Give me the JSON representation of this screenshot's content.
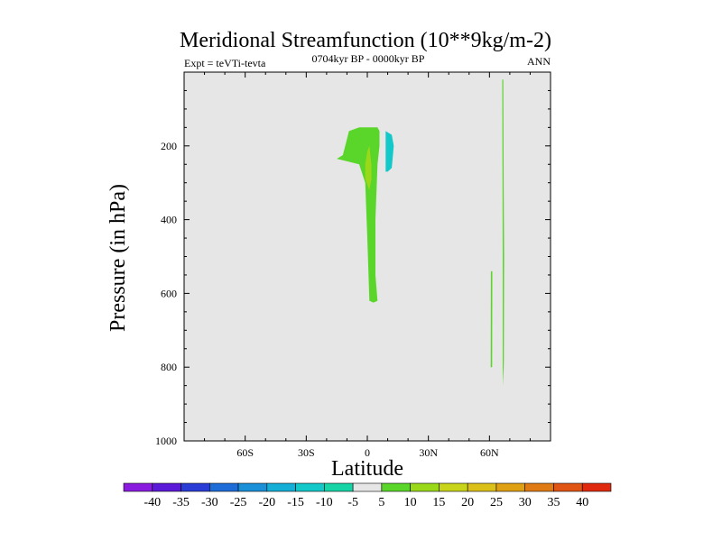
{
  "chart_data": {
    "type": "heatmap",
    "title": "Meridional Streamfunction (10**9kg/m-2)",
    "subtitle_left": "Expt = teVTi-tevta",
    "subtitle_center": "0704kyr BP - 0000kyr BP",
    "subtitle_right": "ANN",
    "xlabel": "Latitude",
    "ylabel": "Pressure (in hPa)",
    "xlim": [
      -90,
      90
    ],
    "ylim": [
      1000,
      0
    ],
    "x_ticks": [
      {
        "value": -60,
        "label": "60S"
      },
      {
        "value": -30,
        "label": "30S"
      },
      {
        "value": 0,
        "label": "0"
      },
      {
        "value": 30,
        "label": "30N"
      },
      {
        "value": 60,
        "label": "60N"
      }
    ],
    "y_ticks": [
      {
        "value": 200,
        "label": "200"
      },
      {
        "value": 400,
        "label": "400"
      },
      {
        "value": 600,
        "label": "600"
      },
      {
        "value": 800,
        "label": "800"
      },
      {
        "value": 1000,
        "label": "1000"
      }
    ],
    "background_color": "#e6e6e6",
    "colorbar": {
      "labels": [
        "-40",
        "-35",
        "-30",
        "-25",
        "-20",
        "-15",
        "-10",
        "-5",
        "5",
        "10",
        "15",
        "20",
        "25",
        "30",
        "35",
        "40"
      ],
      "colors": [
        "#8a1ce0",
        "#5a1ad8",
        "#2a3cd6",
        "#1e6cd8",
        "#1a90d8",
        "#14aed6",
        "#12c8c8",
        "#16d4a6",
        "#e6e6e6",
        "#5ad62a",
        "#9ad81a",
        "#c8d41a",
        "#dcc01a",
        "#e0a014",
        "#e07a14",
        "#e05414",
        "#e02a10"
      ]
    },
    "regions": [
      {
        "value": 5,
        "color": "#5ad62a",
        "points": [
          [
            -12,
            225
          ],
          [
            -9,
            160
          ],
          [
            -4,
            150
          ],
          [
            1,
            150
          ],
          [
            5,
            150
          ],
          [
            6,
            160
          ],
          [
            6,
            200
          ],
          [
            5,
            250
          ],
          [
            4,
            400
          ],
          [
            4,
            550
          ],
          [
            5,
            620
          ],
          [
            3,
            625
          ],
          [
            1,
            620
          ],
          [
            0,
            450
          ],
          [
            -1,
            300
          ],
          [
            -4,
            250
          ],
          [
            -15,
            235
          ]
        ]
      },
      {
        "value": 10,
        "color": "#9ad81a",
        "points": [
          [
            1,
            200
          ],
          [
            2,
            250
          ],
          [
            2,
            290
          ],
          [
            1,
            320
          ],
          [
            -1,
            290
          ],
          [
            -1,
            250
          ],
          [
            0,
            215
          ]
        ]
      },
      {
        "value": -10,
        "color": "#12c8c8",
        "points": [
          [
            9,
            160
          ],
          [
            12,
            170
          ],
          [
            13,
            200
          ],
          [
            12,
            260
          ],
          [
            10,
            270
          ],
          [
            9,
            270
          ],
          [
            9,
            200
          ]
        ]
      },
      {
        "value": 5,
        "color": "#5ad62a",
        "points": [
          [
            60.7,
            540
          ],
          [
            61.4,
            540
          ],
          [
            61.3,
            800
          ],
          [
            60.6,
            800
          ]
        ]
      },
      {
        "value": 5,
        "color": "#5ad62a",
        "points": [
          [
            66.3,
            20
          ],
          [
            66.8,
            20
          ],
          [
            67,
            300
          ],
          [
            67.2,
            500
          ],
          [
            67.1,
            780
          ],
          [
            66.8,
            850
          ],
          [
            66.5,
            800
          ],
          [
            66.5,
            500
          ],
          [
            66.4,
            300
          ]
        ]
      }
    ]
  }
}
